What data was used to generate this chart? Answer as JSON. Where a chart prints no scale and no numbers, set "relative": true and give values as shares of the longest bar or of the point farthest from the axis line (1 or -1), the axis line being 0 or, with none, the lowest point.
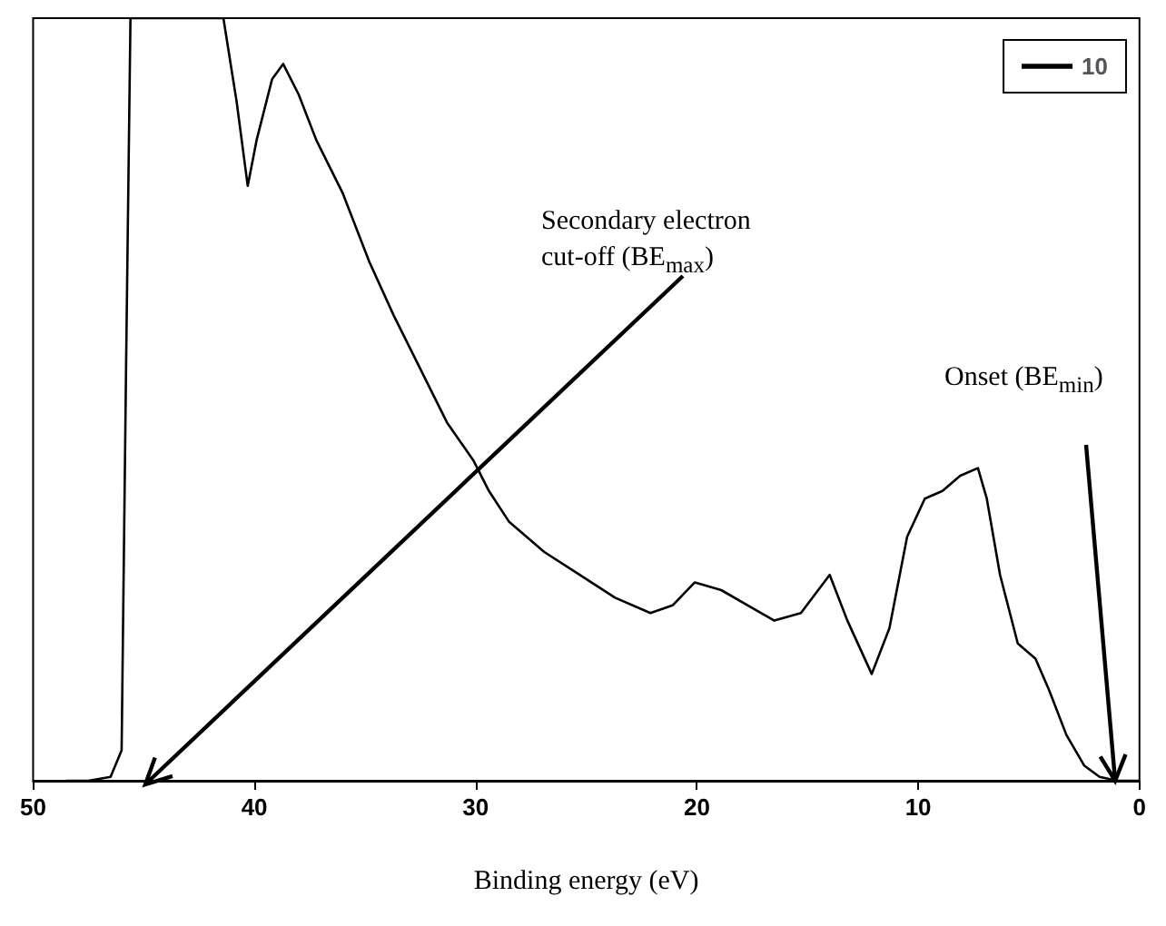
{
  "chart_data": {
    "type": "line",
    "relative": true,
    "xlabel": "Binding energy (eV)",
    "xlim": [
      50,
      0
    ],
    "xticks": [
      50,
      40,
      30,
      20,
      10,
      0
    ],
    "legend": "top right",
    "marker": "none",
    "line_style": "solid",
    "grid": false,
    "series": [
      {
        "name": "10",
        "color": "#000000",
        "x": [
          48.5,
          47.5,
          46.5,
          46.0,
          45.8,
          45.6,
          41.4,
          40.8,
          40.3,
          39.9,
          39.2,
          38.7,
          38.0,
          37.2,
          36.0,
          34.8,
          33.7,
          32.5,
          31.3,
          30.1,
          29.4,
          28.5,
          26.9,
          25.3,
          23.7,
          22.1,
          21.1,
          20.1,
          18.9,
          17.7,
          16.5,
          15.3,
          14.0,
          13.2,
          12.1,
          11.3,
          10.5,
          9.7,
          8.9,
          8.1,
          7.3,
          6.9,
          6.3,
          5.5,
          4.7,
          4.1,
          3.3,
          2.5,
          1.8,
          1.0,
          0.0
        ],
        "values": [
          0.0,
          0.0,
          0.005,
          0.04,
          0.54,
          1.0,
          1.0,
          0.89,
          0.78,
          0.84,
          0.92,
          0.94,
          0.9,
          0.84,
          0.77,
          0.68,
          0.61,
          0.54,
          0.47,
          0.42,
          0.38,
          0.34,
          0.3,
          0.27,
          0.24,
          0.22,
          0.23,
          0.26,
          0.25,
          0.23,
          0.21,
          0.22,
          0.27,
          0.21,
          0.14,
          0.2,
          0.32,
          0.37,
          0.38,
          0.4,
          0.41,
          0.37,
          0.27,
          0.18,
          0.16,
          0.12,
          0.06,
          0.02,
          0.005,
          0.0,
          0.0
        ]
      }
    ],
    "annotations": [
      "Secondary electron cut-off (BE$_{max}$)",
      "Onset (BE$_{min}$)"
    ]
  }
}
